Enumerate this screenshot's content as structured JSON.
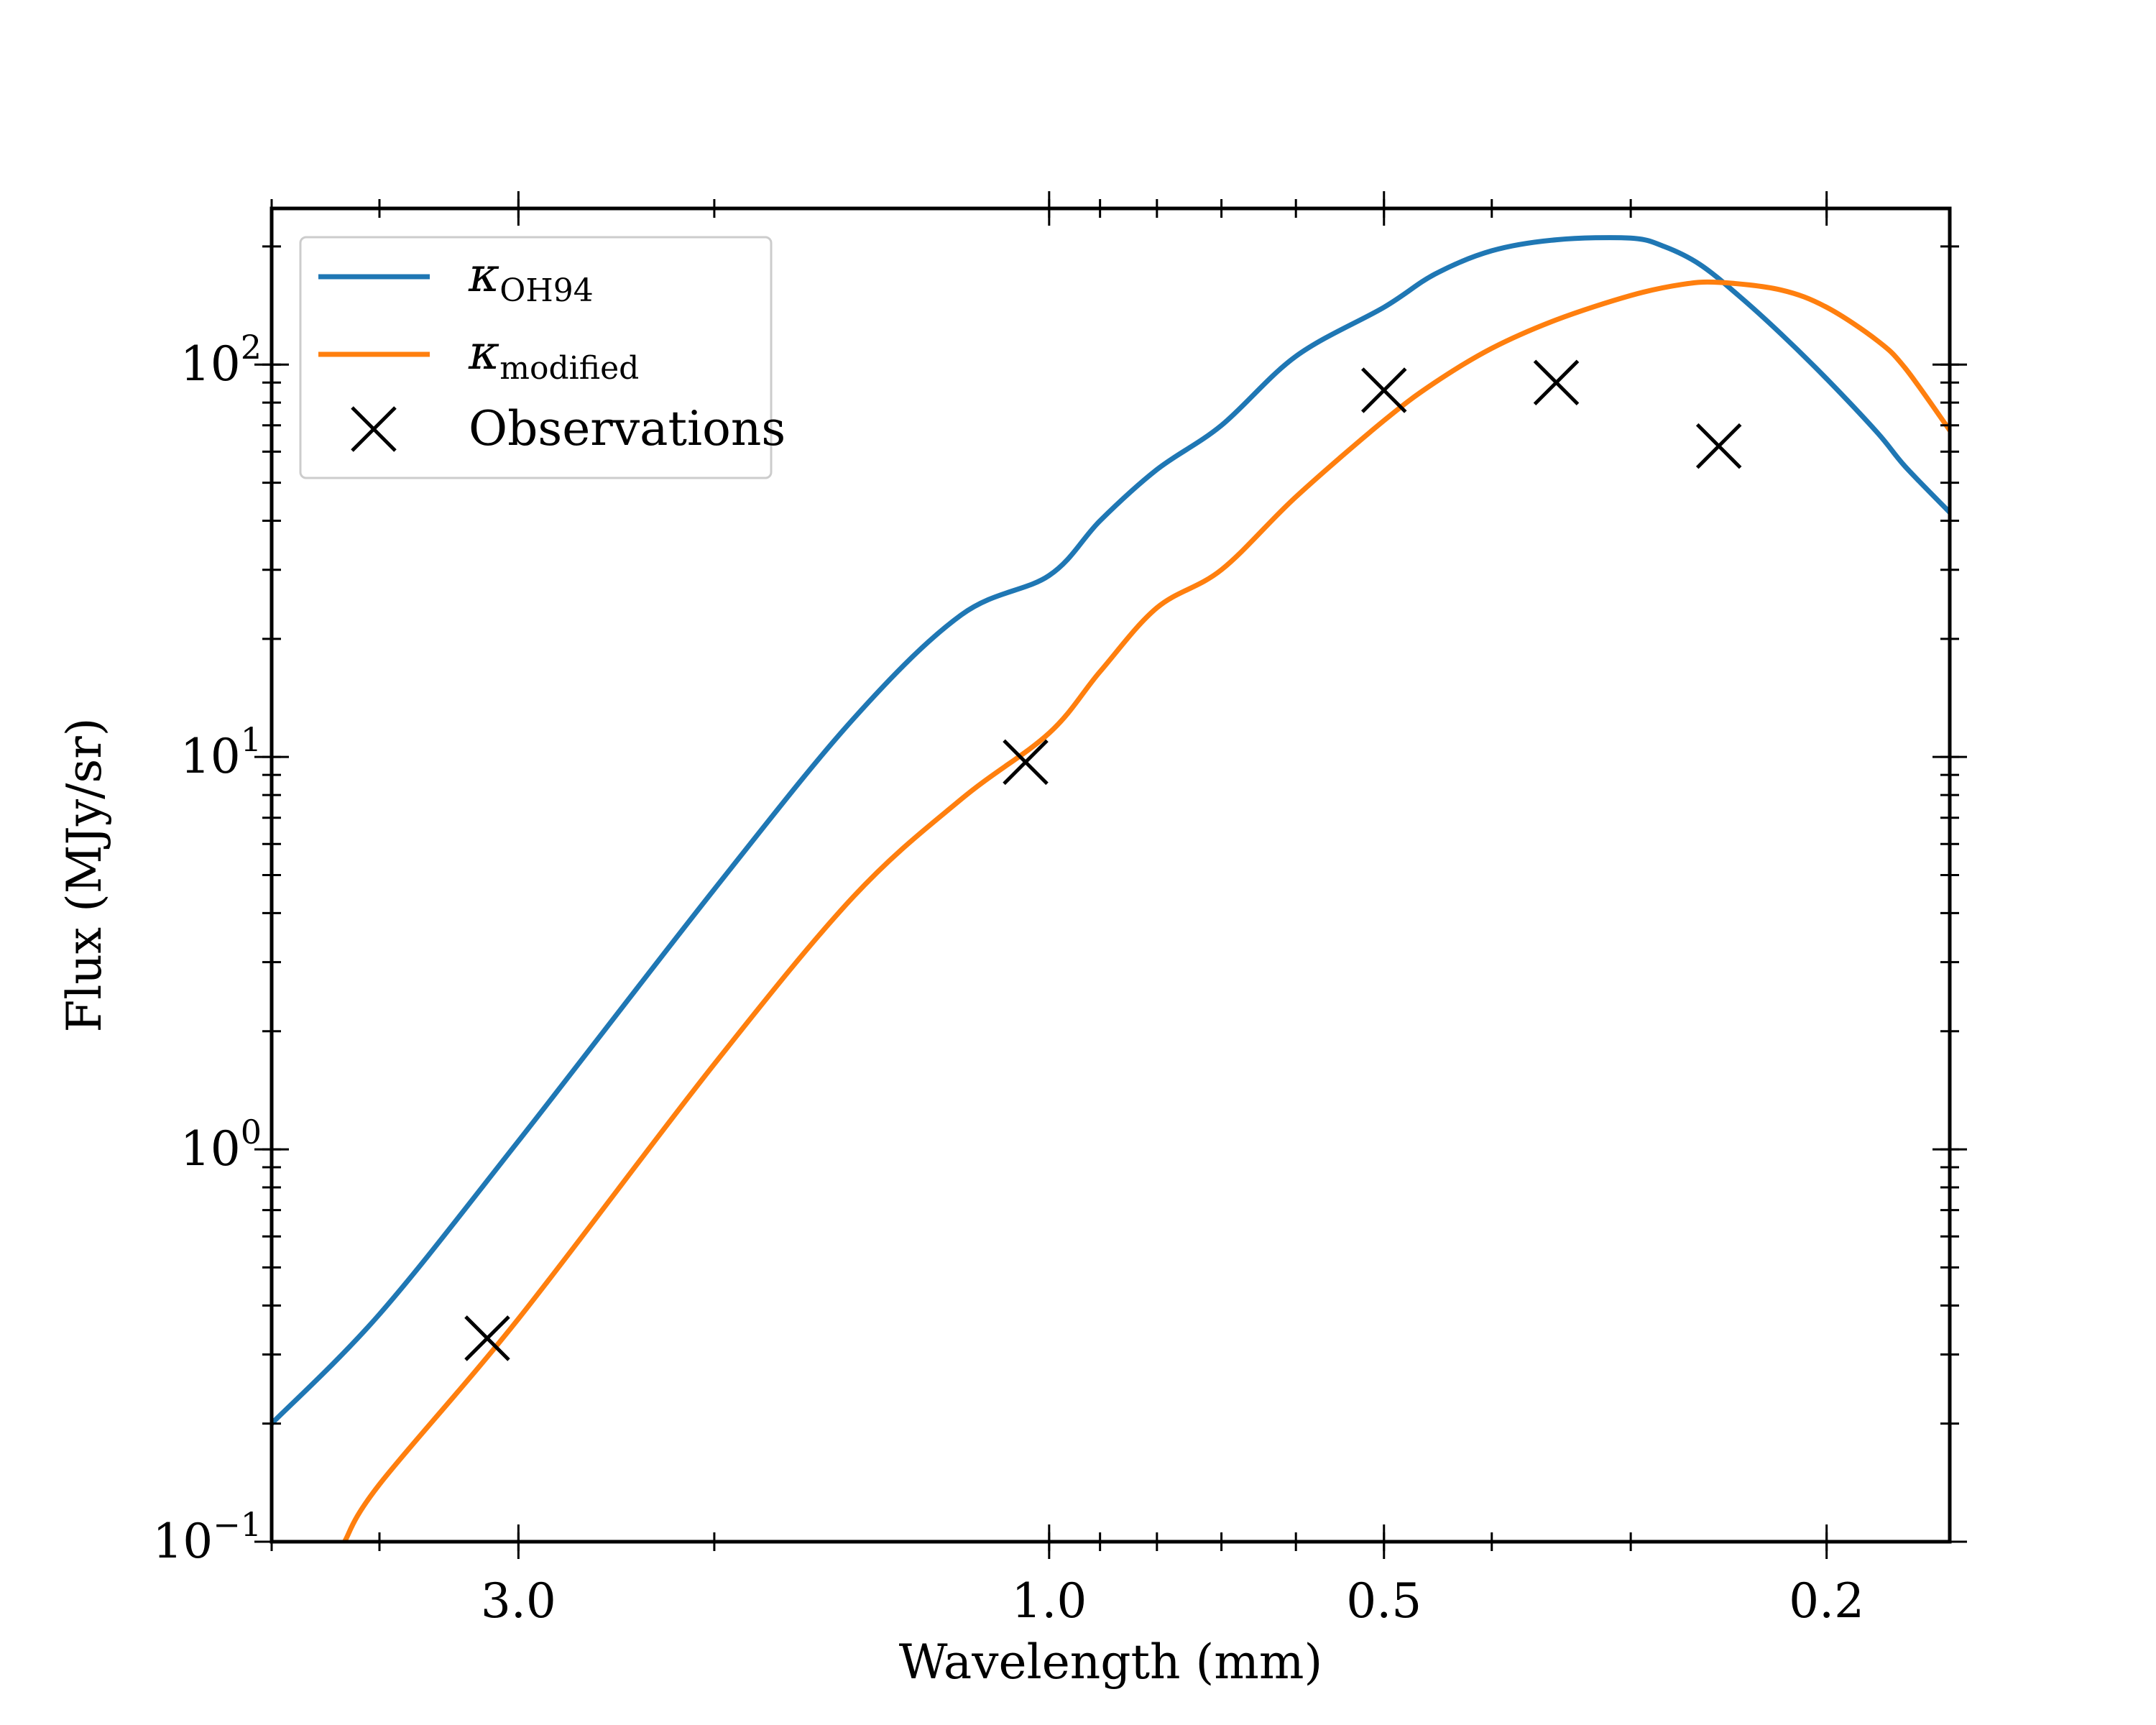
{
  "chart_data": {
    "type": "line",
    "xlabel": "Wavelength (mm)",
    "ylabel": "Flux (MJy/sr)",
    "x_scale": "log, reversed (wavelength decreasing to the right)",
    "y_scale": "log",
    "xlim": [
      5.0,
      0.155
    ],
    "ylim": [
      0.1,
      250
    ],
    "x_ticks": [
      {
        "value": 3.0,
        "label": "3.0"
      },
      {
        "value": 1.0,
        "label": "1.0"
      },
      {
        "value": 0.5,
        "label": "0.5"
      },
      {
        "value": 0.2,
        "label": "0.2"
      }
    ],
    "y_ticks": [
      {
        "value": 0.1,
        "base": "10",
        "exp": "−1"
      },
      {
        "value": 1,
        "base": "10",
        "exp": "0"
      },
      {
        "value": 10,
        "base": "10",
        "exp": "1"
      },
      {
        "value": 100,
        "base": "10",
        "exp": "2"
      }
    ],
    "legend": {
      "position": "upper-left",
      "entries": [
        {
          "symbol": "κ",
          "sub": "OH94",
          "color": "#1f77b4",
          "marker": "line"
        },
        {
          "symbol": "κ",
          "sub": "modified",
          "color": "#ff7f0e",
          "marker": "line"
        },
        {
          "label": "Observations",
          "color": "#000000",
          "marker": "x"
        }
      ]
    },
    "series": [
      {
        "name": "κOH94",
        "color": "#1f77b4",
        "x": [
          5.0,
          4.0,
          3.0,
          2.0,
          1.5,
          1.2,
          1.0,
          0.9,
          0.8,
          0.7,
          0.6,
          0.5,
          0.45,
          0.4,
          0.35,
          0.3,
          0.28,
          0.26,
          0.24,
          0.22,
          0.2,
          0.18,
          0.17,
          0.155
        ],
        "y": [
          0.2,
          0.38,
          1.05,
          4.6,
          12.5,
          23,
          29,
          40,
          54,
          70,
          105,
          140,
          170,
          195,
          208,
          210,
          200,
          180,
          150,
          120,
          92,
          67,
          55,
          42
        ]
      },
      {
        "name": "κmodified",
        "color": "#ff7f0e",
        "x": [
          4.3,
          4.0,
          3.0,
          2.0,
          1.5,
          1.2,
          1.0,
          0.9,
          0.8,
          0.7,
          0.6,
          0.5,
          0.45,
          0.4,
          0.35,
          0.3,
          0.27,
          0.25,
          0.22,
          0.2,
          0.18,
          0.17,
          0.155
        ],
        "y": [
          0.1,
          0.14,
          0.37,
          1.65,
          4.4,
          7.8,
          11.5,
          16.5,
          24,
          30,
          46,
          72,
          90,
          110,
          130,
          150,
          160,
          162,
          155,
          140,
          115,
          98,
          68
        ]
      }
    ],
    "observations": {
      "name": "Observations",
      "color": "#000000",
      "x": [
        3.2,
        1.05,
        0.5,
        0.35,
        0.25
      ],
      "y": [
        0.33,
        9.7,
        86,
        90,
        62
      ]
    }
  }
}
